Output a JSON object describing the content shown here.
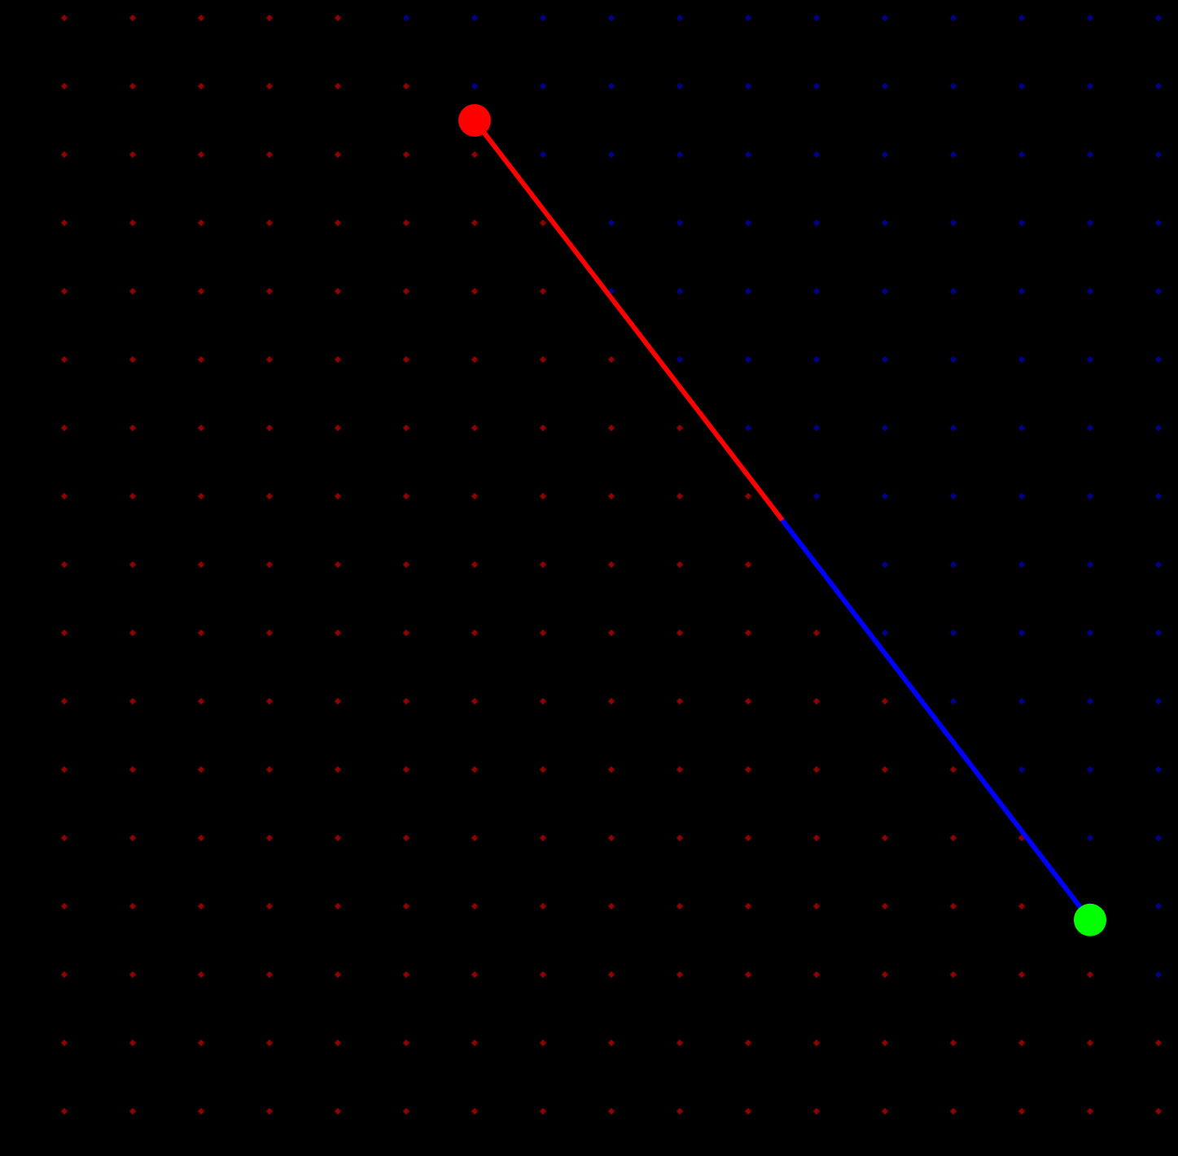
{
  "scene": {
    "background_color": "#000000",
    "grid": {
      "columns": 18,
      "rows": 17,
      "dot_color_left_side": "#8b0000",
      "dot_color_right_side": "#00008b"
    },
    "divider_line": {
      "start_cell": [
        7,
        1.5
      ],
      "end_cell": [
        16,
        13.2
      ]
    },
    "path": {
      "start_marker": {
        "name": "red-ball",
        "color": "#ff0000",
        "cell": [
          7,
          1.5
        ]
      },
      "end_marker": {
        "name": "green-target",
        "color": "#00ff00",
        "cell": [
          16,
          13.2
        ]
      },
      "segments": [
        {
          "color": "#ff0000",
          "from_fraction": 0.0,
          "to_fraction": 0.5
        },
        {
          "color": "#0000ff",
          "from_fraction": 0.5,
          "to_fraction": 1.0
        }
      ]
    }
  }
}
